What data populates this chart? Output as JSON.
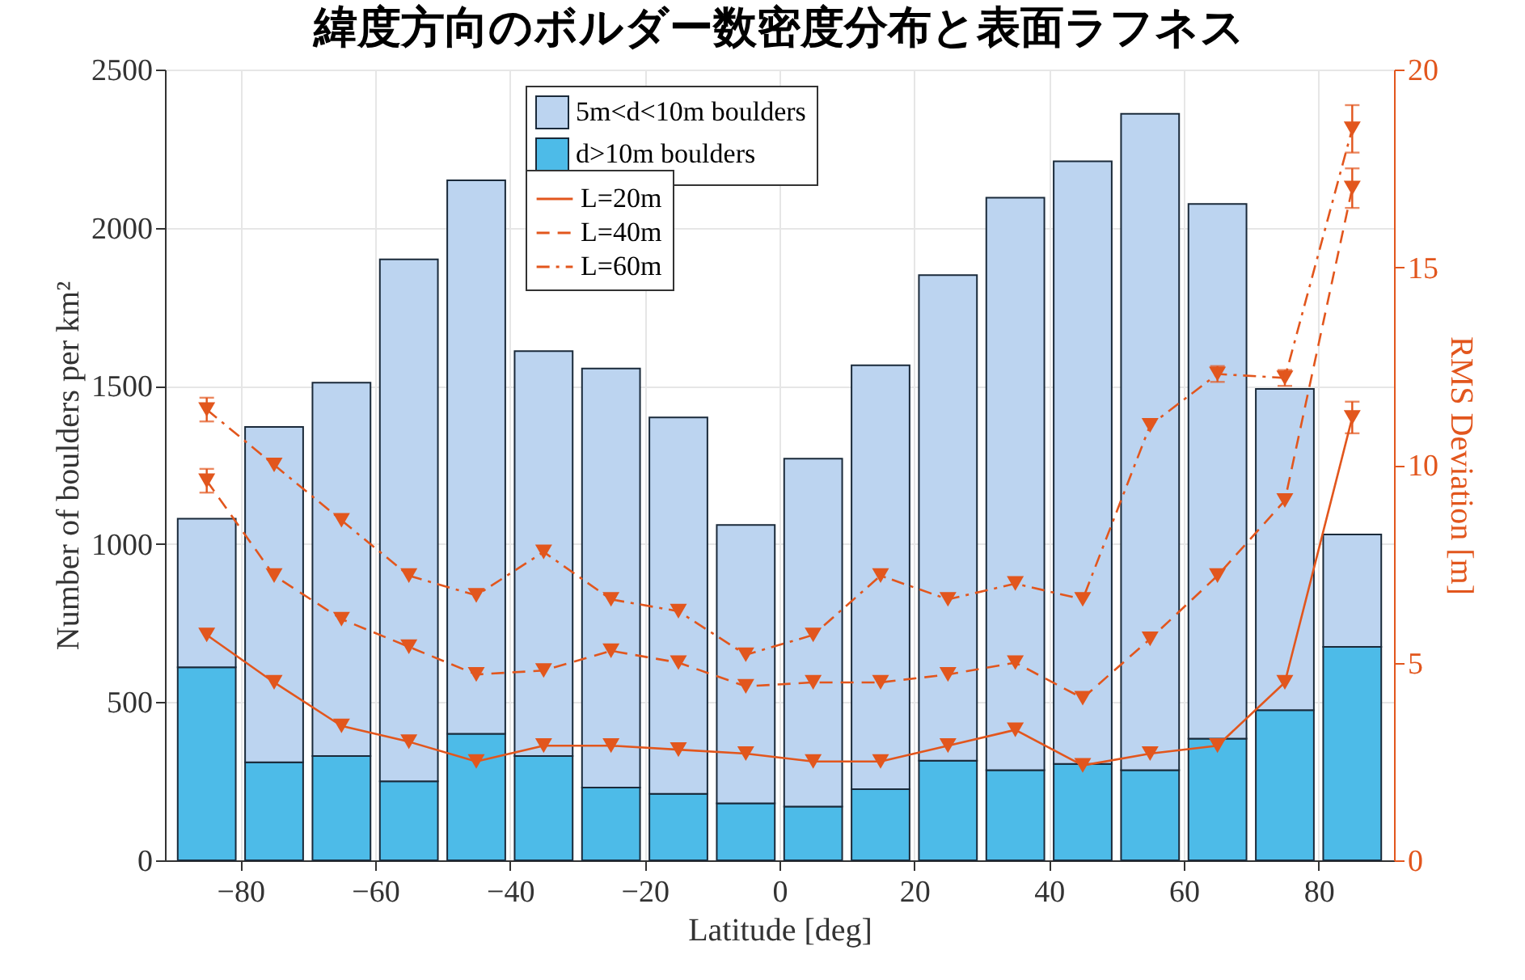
{
  "chart_data": {
    "type": "bar",
    "title": "緯度方向のボルダー数密度分布と表面ラフネス",
    "xlabel": "Latitude [deg]",
    "ylabel": "Number of boulders per km²",
    "y2label": "RMS Deviation [m]",
    "x": [
      -85,
      -75,
      -65,
      -55,
      -45,
      -35,
      -25,
      -15,
      -5,
      5,
      15,
      25,
      35,
      45,
      55,
      65,
      75,
      85
    ],
    "xlim": [
      -90,
      90
    ],
    "xticks": [
      -80,
      -60,
      -40,
      -20,
      0,
      20,
      40,
      60,
      80
    ],
    "ylim": [
      0,
      2500
    ],
    "yticks": [
      0,
      500,
      1000,
      1500,
      2000,
      2500
    ],
    "y2lim": [
      0,
      20
    ],
    "y2ticks": [
      0,
      5,
      10,
      15,
      20
    ],
    "stacked": true,
    "grid": true,
    "legend": "top",
    "marker": "triangle",
    "series": [
      {
        "name": "d>10m boulders",
        "color": "#4dbbe8",
        "values": [
          610,
          310,
          330,
          250,
          400,
          330,
          230,
          210,
          180,
          170,
          225,
          315,
          285,
          305,
          285,
          385,
          475,
          675
        ]
      },
      {
        "name": "5m<d<10m boulders",
        "color": "#bcd4f0",
        "values": [
          470,
          1060,
          1180,
          1650,
          1750,
          1280,
          1325,
          1190,
          880,
          1100,
          1340,
          1535,
          1810,
          1905,
          2075,
          1690,
          1015,
          355
        ]
      },
      {
        "name": "L=20m",
        "type": "line",
        "axis": "y2",
        "color": "#e2561d",
        "line_style": "solid",
        "values": [
          5.7,
          4.5,
          3.4,
          3.0,
          2.5,
          2.9,
          2.9,
          2.8,
          2.7,
          2.5,
          2.5,
          2.9,
          3.3,
          2.4,
          2.7,
          2.9,
          4.5,
          11.2
        ],
        "errors": [
          null,
          null,
          null,
          null,
          null,
          null,
          null,
          null,
          null,
          null,
          null,
          null,
          null,
          null,
          null,
          null,
          null,
          0.4
        ]
      },
      {
        "name": "L=40m",
        "type": "line",
        "axis": "y2",
        "color": "#e2561d",
        "line_style": "dashed",
        "values": [
          9.6,
          7.2,
          6.1,
          5.4,
          4.7,
          4.8,
          5.3,
          5.0,
          4.4,
          4.5,
          4.5,
          4.7,
          5.0,
          4.1,
          5.6,
          7.2,
          9.1,
          17.0
        ],
        "errors": [
          0.3,
          null,
          null,
          null,
          null,
          null,
          null,
          null,
          null,
          null,
          null,
          null,
          null,
          null,
          null,
          null,
          null,
          0.5
        ]
      },
      {
        "name": "L=60m",
        "type": "line",
        "axis": "y2",
        "color": "#e2561d",
        "line_style": "dashdot",
        "values": [
          11.4,
          10.0,
          8.6,
          7.2,
          6.7,
          7.8,
          6.6,
          6.3,
          5.2,
          5.7,
          7.2,
          6.6,
          7.0,
          6.6,
          11.0,
          12.3,
          12.2,
          18.5
        ],
        "errors": [
          0.3,
          null,
          null,
          null,
          null,
          null,
          null,
          null,
          null,
          null,
          null,
          null,
          null,
          null,
          null,
          0.2,
          0.2,
          0.6
        ]
      }
    ]
  }
}
